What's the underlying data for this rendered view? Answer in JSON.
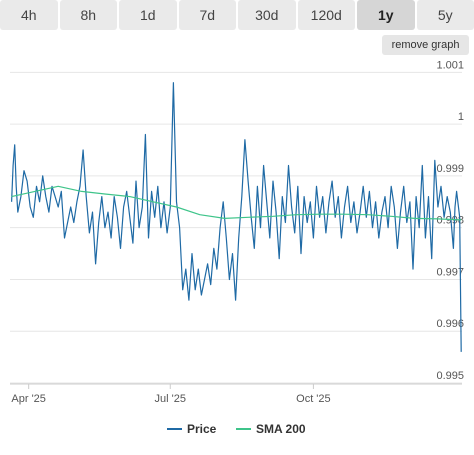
{
  "timeframes": {
    "tabs": [
      "4h",
      "8h",
      "1d",
      "7d",
      "30d",
      "120d",
      "1y",
      "5y"
    ],
    "active": "1y"
  },
  "remove_graph_label": "remove graph",
  "colors": {
    "price": "#1f6aa5",
    "sma": "#3ec48a",
    "grid": "#e6e6e6",
    "axis_text": "#555555"
  },
  "chart_data": {
    "type": "line",
    "title": "",
    "xlabel": "",
    "ylabel": "",
    "ylim": [
      0.995,
      1.0012
    ],
    "yticks": [
      "1.001",
      "1",
      "0.999",
      "0.998",
      "0.997",
      "0.996",
      "0.995"
    ],
    "xticks": [
      {
        "label": "Apr '25",
        "date": "2025-04-01"
      },
      {
        "label": "Jul '25",
        "date": "2025-07-01"
      },
      {
        "label": "Oct '25",
        "date": "2025-10-01"
      }
    ],
    "grid": "horizontal",
    "legend_position": "bottom",
    "series": [
      {
        "name": "Price",
        "points": [
          [
            "2025-03-21",
            0.9985
          ],
          [
            "2025-03-22",
            0.9992
          ],
          [
            "2025-03-23",
            0.9996
          ],
          [
            "2025-03-24",
            0.9988
          ],
          [
            "2025-03-25",
            0.9983
          ],
          [
            "2025-03-27",
            0.9986
          ],
          [
            "2025-03-29",
            0.9991
          ],
          [
            "2025-03-31",
            0.9989
          ],
          [
            "2025-04-02",
            0.9984
          ],
          [
            "2025-04-04",
            0.9982
          ],
          [
            "2025-04-06",
            0.9988
          ],
          [
            "2025-04-08",
            0.9985
          ],
          [
            "2025-04-10",
            0.999
          ],
          [
            "2025-04-12",
            0.9986
          ],
          [
            "2025-04-14",
            0.9983
          ],
          [
            "2025-04-16",
            0.9988
          ],
          [
            "2025-04-18",
            0.9986
          ],
          [
            "2025-04-20",
            0.9984
          ],
          [
            "2025-04-22",
            0.9987
          ],
          [
            "2025-04-24",
            0.9978
          ],
          [
            "2025-04-26",
            0.9981
          ],
          [
            "2025-04-28",
            0.9984
          ],
          [
            "2025-04-30",
            0.9981
          ],
          [
            "2025-05-02",
            0.9985
          ],
          [
            "2025-05-04",
            0.9988
          ],
          [
            "2025-05-06",
            0.9995
          ],
          [
            "2025-05-08",
            0.9986
          ],
          [
            "2025-05-10",
            0.9979
          ],
          [
            "2025-05-12",
            0.9983
          ],
          [
            "2025-05-14",
            0.9973
          ],
          [
            "2025-05-16",
            0.9981
          ],
          [
            "2025-05-18",
            0.9986
          ],
          [
            "2025-05-20",
            0.998
          ],
          [
            "2025-05-22",
            0.9983
          ],
          [
            "2025-05-24",
            0.9978
          ],
          [
            "2025-05-26",
            0.9986
          ],
          [
            "2025-05-28",
            0.9982
          ],
          [
            "2025-05-30",
            0.9976
          ],
          [
            "2025-06-01",
            0.9984
          ],
          [
            "2025-06-03",
            0.9987
          ],
          [
            "2025-06-05",
            0.9982
          ],
          [
            "2025-06-07",
            0.9977
          ],
          [
            "2025-06-09",
            0.9989
          ],
          [
            "2025-06-11",
            0.998
          ],
          [
            "2025-06-13",
            0.9984
          ],
          [
            "2025-06-15",
            0.9998
          ],
          [
            "2025-06-17",
            0.9978
          ],
          [
            "2025-06-19",
            0.9987
          ],
          [
            "2025-06-21",
            0.9982
          ],
          [
            "2025-06-23",
            0.9988
          ],
          [
            "2025-06-25",
            0.998
          ],
          [
            "2025-06-27",
            0.9985
          ],
          [
            "2025-06-29",
            0.9979
          ],
          [
            "2025-07-01",
            0.9984
          ],
          [
            "2025-07-03",
            1.0008
          ],
          [
            "2025-07-05",
            0.9985
          ],
          [
            "2025-07-07",
            0.998
          ],
          [
            "2025-07-09",
            0.9968
          ],
          [
            "2025-07-11",
            0.9972
          ],
          [
            "2025-07-13",
            0.9966
          ],
          [
            "2025-07-15",
            0.9975
          ],
          [
            "2025-07-17",
            0.9968
          ],
          [
            "2025-07-19",
            0.9972
          ],
          [
            "2025-07-21",
            0.9967
          ],
          [
            "2025-07-23",
            0.997
          ],
          [
            "2025-07-25",
            0.9973
          ],
          [
            "2025-07-27",
            0.9969
          ],
          [
            "2025-07-29",
            0.9976
          ],
          [
            "2025-07-31",
            0.9972
          ],
          [
            "2025-08-02",
            0.998
          ],
          [
            "2025-08-04",
            0.9985
          ],
          [
            "2025-08-06",
            0.9978
          ],
          [
            "2025-08-08",
            0.997
          ],
          [
            "2025-08-10",
            0.9975
          ],
          [
            "2025-08-12",
            0.9966
          ],
          [
            "2025-08-14",
            0.9978
          ],
          [
            "2025-08-16",
            0.9986
          ],
          [
            "2025-08-18",
            0.9997
          ],
          [
            "2025-08-20",
            0.9989
          ],
          [
            "2025-08-22",
            0.9982
          ],
          [
            "2025-08-24",
            0.9976
          ],
          [
            "2025-08-26",
            0.9988
          ],
          [
            "2025-08-28",
            0.998
          ],
          [
            "2025-08-30",
            0.9992
          ],
          [
            "2025-09-01",
            0.9985
          ],
          [
            "2025-09-03",
            0.9978
          ],
          [
            "2025-09-05",
            0.9989
          ],
          [
            "2025-09-07",
            0.9983
          ],
          [
            "2025-09-09",
            0.9974
          ],
          [
            "2025-09-11",
            0.9986
          ],
          [
            "2025-09-13",
            0.9981
          ],
          [
            "2025-09-15",
            0.9992
          ],
          [
            "2025-09-17",
            0.9984
          ],
          [
            "2025-09-19",
            0.9979
          ],
          [
            "2025-09-21",
            0.9988
          ],
          [
            "2025-09-23",
            0.9975
          ],
          [
            "2025-09-25",
            0.9986
          ],
          [
            "2025-09-27",
            0.9981
          ],
          [
            "2025-09-29",
            0.9985
          ],
          [
            "2025-10-01",
            0.9978
          ],
          [
            "2025-10-03",
            0.9988
          ],
          [
            "2025-10-05",
            0.9982
          ],
          [
            "2025-10-07",
            0.9986
          ],
          [
            "2025-10-09",
            0.9979
          ],
          [
            "2025-10-11",
            0.9985
          ],
          [
            "2025-10-13",
            0.9989
          ],
          [
            "2025-10-15",
            0.9982
          ],
          [
            "2025-10-17",
            0.9986
          ],
          [
            "2025-10-19",
            0.9978
          ],
          [
            "2025-10-21",
            0.9984
          ],
          [
            "2025-10-23",
            0.9988
          ],
          [
            "2025-10-25",
            0.9981
          ],
          [
            "2025-10-27",
            0.9985
          ],
          [
            "2025-10-29",
            0.9979
          ],
          [
            "2025-10-31",
            0.9983
          ],
          [
            "2025-11-02",
            0.9988
          ],
          [
            "2025-11-04",
            0.9982
          ],
          [
            "2025-11-06",
            0.9987
          ],
          [
            "2025-11-08",
            0.998
          ],
          [
            "2025-11-10",
            0.9985
          ],
          [
            "2025-11-12",
            0.9978
          ],
          [
            "2025-11-14",
            0.9983
          ],
          [
            "2025-11-16",
            0.9986
          ],
          [
            "2025-11-18",
            0.998
          ],
          [
            "2025-11-20",
            0.9988
          ],
          [
            "2025-11-22",
            0.9984
          ],
          [
            "2025-11-24",
            0.9976
          ],
          [
            "2025-11-26",
            0.9983
          ],
          [
            "2025-11-28",
            0.9988
          ],
          [
            "2025-11-30",
            0.9981
          ],
          [
            "2025-12-02",
            0.9985
          ],
          [
            "2025-12-04",
            0.9972
          ],
          [
            "2025-12-06",
            0.9986
          ],
          [
            "2025-12-08",
            0.998
          ],
          [
            "2025-12-10",
            0.9992
          ],
          [
            "2025-12-12",
            0.9978
          ],
          [
            "2025-12-14",
            0.9986
          ],
          [
            "2025-12-16",
            0.9974
          ],
          [
            "2025-12-18",
            0.9993
          ],
          [
            "2025-12-20",
            0.9984
          ],
          [
            "2025-12-22",
            0.9988
          ],
          [
            "2025-12-24",
            0.9982
          ],
          [
            "2025-12-26",
            0.9986
          ],
          [
            "2025-12-28",
            0.9983
          ],
          [
            "2025-12-30",
            0.9976
          ],
          [
            "2025-12-31",
            0.9984
          ],
          [
            "2026-01-01",
            0.9987
          ],
          [
            "2026-01-03",
            0.9982
          ],
          [
            "2026-01-04",
            0.9956
          ]
        ]
      },
      {
        "name": "SMA 200",
        "points": [
          [
            "2025-03-21",
            0.9986
          ],
          [
            "2025-04-05",
            0.9987
          ],
          [
            "2025-04-20",
            0.9988
          ],
          [
            "2025-05-05",
            0.9987
          ],
          [
            "2025-05-20",
            0.99865
          ],
          [
            "2025-06-05",
            0.9986
          ],
          [
            "2025-06-20",
            0.9985
          ],
          [
            "2025-07-05",
            0.9984
          ],
          [
            "2025-07-20",
            0.99825
          ],
          [
            "2025-08-05",
            0.99818
          ],
          [
            "2025-08-20",
            0.9982
          ],
          [
            "2025-09-05",
            0.99822
          ],
          [
            "2025-09-20",
            0.99825
          ],
          [
            "2025-10-05",
            0.99826
          ],
          [
            "2025-10-20",
            0.99826
          ],
          [
            "2025-11-05",
            0.99825
          ],
          [
            "2025-11-20",
            0.99822
          ],
          [
            "2025-12-05",
            0.99818
          ],
          [
            "2025-12-20",
            0.99817
          ],
          [
            "2026-01-04",
            0.99815
          ]
        ]
      }
    ]
  }
}
